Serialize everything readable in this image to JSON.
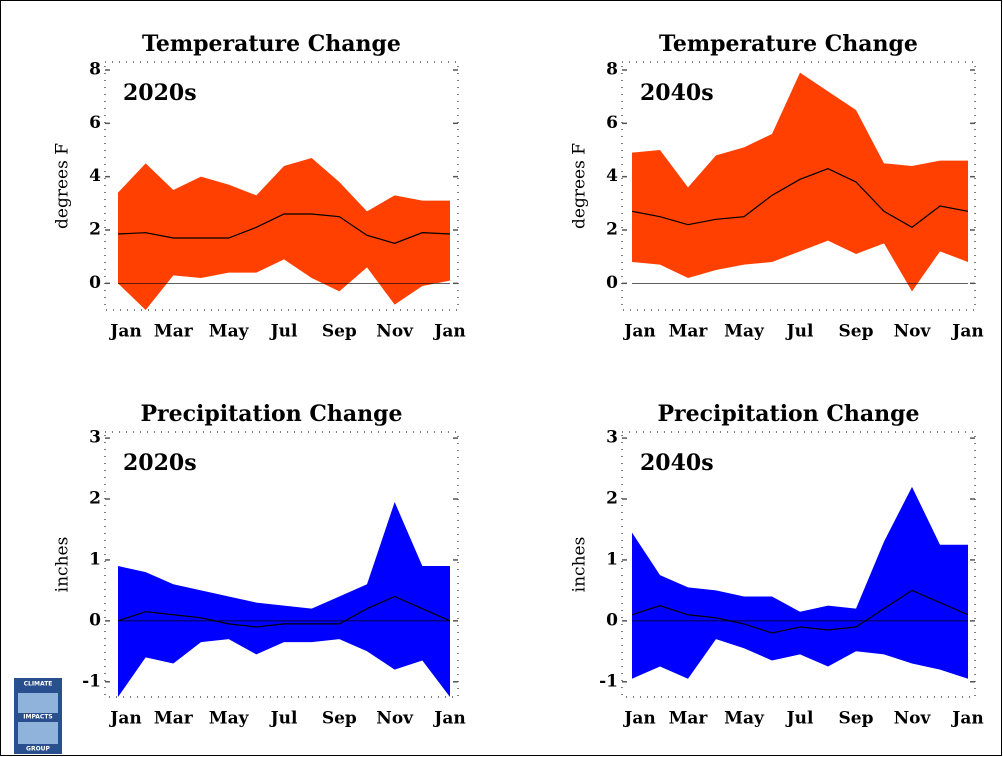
{
  "chart_data": [
    {
      "type": "band",
      "title": "Temperature Change",
      "annotation": "2020s",
      "ylabel": "degrees F",
      "categories": [
        "Jan",
        null,
        "Mar",
        null,
        "May",
        null,
        "Jul",
        null,
        "Sep",
        null,
        "Nov",
        null,
        "Jan"
      ],
      "series": [
        {
          "color": "#ff4000",
          "values": [
            3.4,
            4.5,
            3.5,
            4.0,
            3.7,
            3.3,
            4.4,
            4.7,
            3.8,
            2.7,
            3.3,
            3.1,
            3.1
          ],
          "lower": [
            0,
            -1.0,
            0.3,
            0.2,
            0.4,
            0.4,
            0.9,
            0.2,
            -0.3,
            0.6,
            -0.8,
            -0.1,
            0.1
          ]
        },
        {
          "color": "#000000",
          "values": [
            1.85,
            1.9,
            1.7,
            1.7,
            1.7,
            2.1,
            2.6,
            2.6,
            2.5,
            1.8,
            1.5,
            1.9,
            1.85
          ]
        }
      ],
      "ylim": [
        -1,
        8.3
      ],
      "yticks": [
        0,
        2,
        4,
        6,
        8
      ]
    },
    {
      "type": "band",
      "title": "Temperature Change",
      "annotation": "2040s",
      "ylabel": "degrees F",
      "categories": [
        "Jan",
        null,
        "Mar",
        null,
        "May",
        null,
        "Jul",
        null,
        "Sep",
        null,
        "Nov",
        null,
        "Jan"
      ],
      "series": [
        {
          "color": "#ff4000",
          "values": [
            4.9,
            5.0,
            3.6,
            4.8,
            5.1,
            5.6,
            7.9,
            7.2,
            6.5,
            4.5,
            4.4,
            4.6,
            4.6
          ],
          "lower": [
            0.8,
            0.7,
            0.2,
            0.5,
            0.7,
            0.8,
            1.2,
            1.6,
            1.1,
            1.5,
            -0.3,
            1.2,
            0.8
          ]
        },
        {
          "color": "#000000",
          "values": [
            2.7,
            2.5,
            2.2,
            2.4,
            2.5,
            3.3,
            3.9,
            4.3,
            3.8,
            2.7,
            2.1,
            2.9,
            2.7
          ]
        }
      ],
      "ylim": [
        -1,
        8.3
      ],
      "yticks": [
        0,
        2,
        4,
        6,
        8
      ]
    },
    {
      "type": "band",
      "title": "Precipitation Change",
      "annotation": "2020s",
      "ylabel": "inches",
      "categories": [
        "Jan",
        null,
        "Mar",
        null,
        "May",
        null,
        "Jul",
        null,
        "Sep",
        null,
        "Nov",
        null,
        "Jan"
      ],
      "series": [
        {
          "color": "#0000ff",
          "values": [
            0.9,
            0.8,
            0.6,
            0.5,
            0.4,
            0.3,
            0.25,
            0.2,
            0.4,
            0.6,
            1.95,
            0.9,
            0.9
          ],
          "lower": [
            -1.25,
            -0.6,
            -0.7,
            -0.35,
            -0.3,
            -0.55,
            -0.35,
            -0.35,
            -0.3,
            -0.5,
            -0.8,
            -0.65,
            -1.25
          ]
        },
        {
          "color": "#000000",
          "values": [
            0.0,
            0.15,
            0.1,
            0.05,
            -0.05,
            -0.1,
            -0.05,
            -0.05,
            -0.05,
            0.2,
            0.4,
            0.2,
            0.0
          ]
        }
      ],
      "ylim": [
        -1.25,
        3.1
      ],
      "yticks": [
        -1,
        0,
        1,
        2,
        3
      ]
    },
    {
      "type": "band",
      "title": "Precipitation Change",
      "annotation": "2040s",
      "ylabel": "inches",
      "categories": [
        "Jan",
        null,
        "Mar",
        null,
        "May",
        null,
        "Jul",
        null,
        "Sep",
        null,
        "Nov",
        null,
        "Jan"
      ],
      "series": [
        {
          "color": "#0000ff",
          "values": [
            1.45,
            0.75,
            0.55,
            0.5,
            0.4,
            0.4,
            0.15,
            0.25,
            0.2,
            1.3,
            2.2,
            1.25,
            1.25
          ],
          "lower": [
            -0.95,
            -0.75,
            -0.95,
            -0.3,
            -0.45,
            -0.65,
            -0.55,
            -0.75,
            -0.5,
            -0.55,
            -0.7,
            -0.8,
            -0.95
          ]
        },
        {
          "color": "#000000",
          "values": [
            0.1,
            0.25,
            0.1,
            0.05,
            -0.05,
            -0.2,
            -0.1,
            -0.15,
            -0.1,
            0.2,
            0.5,
            0.3,
            0.1
          ]
        }
      ],
      "ylim": [
        -1.25,
        3.1
      ],
      "yticks": [
        -1,
        0,
        1,
        2,
        3
      ]
    }
  ],
  "logo": {
    "lines": [
      "CLIMATE",
      "IMPACTS",
      "GROUP"
    ]
  }
}
